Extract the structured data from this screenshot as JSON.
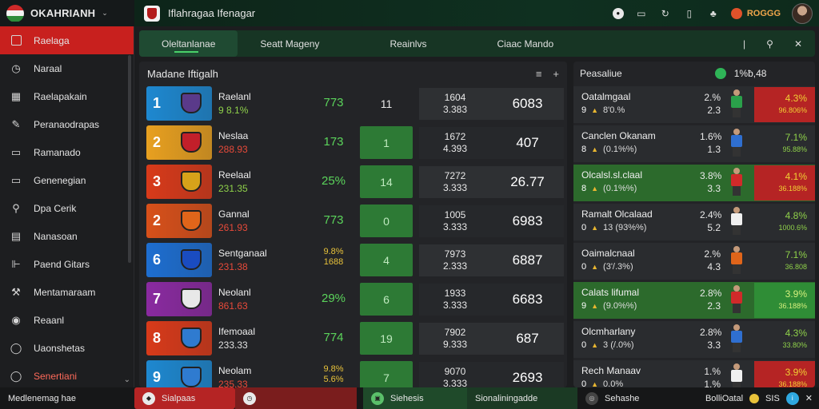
{
  "brand": {
    "name": "OKAHRIANH",
    "flag_colors": [
      "#cf2a2a",
      "#f2f2f2",
      "#2e8b3a"
    ]
  },
  "app": {
    "title": "Iflahragaa Ifenagar"
  },
  "header_actions": {
    "coins_label": "ROGGG"
  },
  "sidebar": {
    "items": [
      {
        "label": "Raelaga",
        "icon": "box-icon",
        "active": true
      },
      {
        "label": "Naraal",
        "icon": "clock-icon"
      },
      {
        "label": "Raelapakain",
        "icon": "grid-icon"
      },
      {
        "label": "Peranaodrapas",
        "icon": "pen-icon"
      },
      {
        "label": "Ramanado",
        "icon": "window-icon"
      },
      {
        "label": "Genenegian",
        "icon": "window-icon"
      },
      {
        "label": "Dpa Cerik",
        "icon": "pin-icon"
      },
      {
        "label": "Nanasoan",
        "icon": "table-icon"
      },
      {
        "label": "Paend Gitars",
        "icon": "chart-icon"
      },
      {
        "label": "Mentamaraam",
        "icon": "wrench-icon"
      },
      {
        "label": "Reaanl",
        "icon": "circle-icon"
      },
      {
        "label": "Uaonshetas",
        "icon": "ring-icon"
      },
      {
        "label": "Senertiani",
        "icon": "ring-icon",
        "hot": true
      }
    ],
    "footer": "Medlenemag hae"
  },
  "tabs": [
    {
      "label": "Oleltanlanae",
      "active": true
    },
    {
      "label": "Seatt Mageny"
    },
    {
      "label": "Reainlvs"
    },
    {
      "label": "Ciaac Mando"
    }
  ],
  "standings": {
    "title": "Madane Iftigalh",
    "rows": [
      {
        "rank": "1",
        "rank_color": "#1e88d0",
        "crest_color": "#5a3a8a",
        "name": "Raelanl",
        "sub": "9 8.1%",
        "sub_color": "#8fd14a",
        "form": [
          "773"
        ],
        "gp": "11",
        "gp_hl": false,
        "stat": [
          "1604",
          "3.383"
        ],
        "pts": "6083"
      },
      {
        "rank": "2",
        "rank_color": "#e8a020",
        "crest_color": "#c21f2a",
        "name": "Neslaa",
        "sub": "288.93",
        "sub_color": "#e84a3a",
        "form": [
          "173"
        ],
        "gp": "1",
        "gp_hl": true,
        "stat": [
          "1672",
          "4.393"
        ],
        "pts": "407"
      },
      {
        "rank": "3",
        "rank_color": "#d83a1a",
        "crest_color": "#d6a21a",
        "name": "Reelaal",
        "sub": "231.35",
        "sub_color": "#8fd14a",
        "form": [
          "25%"
        ],
        "gp": "14",
        "gp_hl": true,
        "stat": [
          "7272",
          "3.333"
        ],
        "pts": "26.77"
      },
      {
        "rank": "2",
        "rank_color": "#d8501a",
        "crest_color": "#e0651a",
        "name": "Gannal",
        "sub": "261.93",
        "sub_color": "#e84a3a",
        "form": [
          "773"
        ],
        "gp": "0",
        "gp_hl": true,
        "stat": [
          "1005",
          "3.333"
        ],
        "pts": "6983"
      },
      {
        "rank": "6",
        "rank_color": "#1e6ed0",
        "crest_color": "#1a4cc0",
        "name": "Sentganaal",
        "sub": "231.38",
        "sub_color": "#e84a3a",
        "form": [
          "9.8%",
          "1688"
        ],
        "gp": "4",
        "gp_hl": true,
        "stat": [
          "7973",
          "2.333"
        ],
        "pts": "6887"
      },
      {
        "rank": "7",
        "rank_color": "#8a2aa0",
        "crest_color": "#e8e8e8",
        "name": "Neolanl",
        "sub": "861.63",
        "sub_color": "#e84a3a",
        "form": [
          "29%"
        ],
        "gp": "6",
        "gp_hl": true,
        "stat": [
          "1933",
          "3.333"
        ],
        "pts": "6683"
      },
      {
        "rank": "8",
        "rank_color": "#d83a1a",
        "crest_color": "#2f7bd0",
        "name": "Ifemoaal",
        "sub": "233.33",
        "sub_color": "#e0e0e0",
        "form": [
          "774"
        ],
        "gp": "19",
        "gp_hl": true,
        "stat": [
          "7902",
          "9.333"
        ],
        "pts": "687"
      },
      {
        "rank": "9",
        "rank_color": "#1e88d0",
        "crest_color": "#2f7bd0",
        "name": "Neolam",
        "sub": "235.33",
        "sub_color": "#e84a3a",
        "form": [
          "9.8%",
          "5.6%"
        ],
        "gp": "7",
        "gp_hl": true,
        "stat": [
          "9070",
          "3.333"
        ],
        "pts": "2693"
      }
    ]
  },
  "players": {
    "title": "Peasaliue",
    "count": "1%ƀ,48",
    "rows": [
      {
        "name": "Oatalmgaal",
        "rk": "9",
        "sub": "8'0.%",
        "stat": [
          "2.%",
          "2.3"
        ],
        "shirt": "#2aa04a",
        "box": "red",
        "box_val": [
          "4.3%",
          "96.806%"
        ],
        "green": false
      },
      {
        "name": "Canclen Okanam",
        "rk": "8",
        "sub": "(0.1%%)",
        "stat": [
          "1.6%",
          "1.3"
        ],
        "shirt": "#2f6fd0",
        "box": "none",
        "box_val": [
          "7.1%",
          "95.88%"
        ],
        "green": false
      },
      {
        "name": "Olcalsl.sl.claal",
        "rk": "8",
        "sub": "(0.1%%)",
        "stat": [
          "3.8%",
          "3.3"
        ],
        "shirt": "#d02a2a",
        "box": "red",
        "box_val": [
          "4.1%",
          "36.188%"
        ],
        "green": true
      },
      {
        "name": "Ramalt Olcalaad",
        "rk": "0",
        "sub": "13 (93%%)",
        "stat": [
          "2.4%",
          "5.2"
        ],
        "shirt": "#f0f0f0",
        "box": "none",
        "box_val": [
          "4.8%",
          "1000.6%"
        ],
        "green": false
      },
      {
        "name": "Oaimalcnaal",
        "rk": "0",
        "sub": "(3'/.3%)",
        "stat": [
          "2.%",
          "4.3"
        ],
        "shirt": "#e0651a",
        "box": "none",
        "box_val": [
          "7.1%",
          "36.808"
        ],
        "green": false
      },
      {
        "name": "Calats lifumal",
        "rk": "9",
        "sub": "(9.0%%)",
        "stat": [
          "2.8%",
          "2.3"
        ],
        "shirt": "#d02a2a",
        "box": "green",
        "box_val": [
          "3.9%",
          "36.188%"
        ],
        "green": true
      },
      {
        "name": "Olcmharlany",
        "rk": "0",
        "sub": "3 (/.0%)",
        "stat": [
          "2.8%",
          "3.3"
        ],
        "shirt": "#2f6fd0",
        "box": "none",
        "box_val": [
          "4.3%",
          "33.80%"
        ],
        "green": false
      },
      {
        "name": "Rech Manaav",
        "rk": "0",
        "sub": "0.0%",
        "stat": [
          "1.%",
          "1.%"
        ],
        "shirt": "#f0f0f0",
        "box": "red",
        "box_val": [
          "3.9%",
          "36.188%"
        ],
        "green": false
      }
    ]
  },
  "bottom": {
    "left": "Medlenemag hae",
    "chip1": "Sialpaas",
    "chip2": "Siehesis",
    "chip3": "Sionaliningadde",
    "chip4": "Sehashe",
    "right": "BolliOatal",
    "right2": "SIS"
  }
}
